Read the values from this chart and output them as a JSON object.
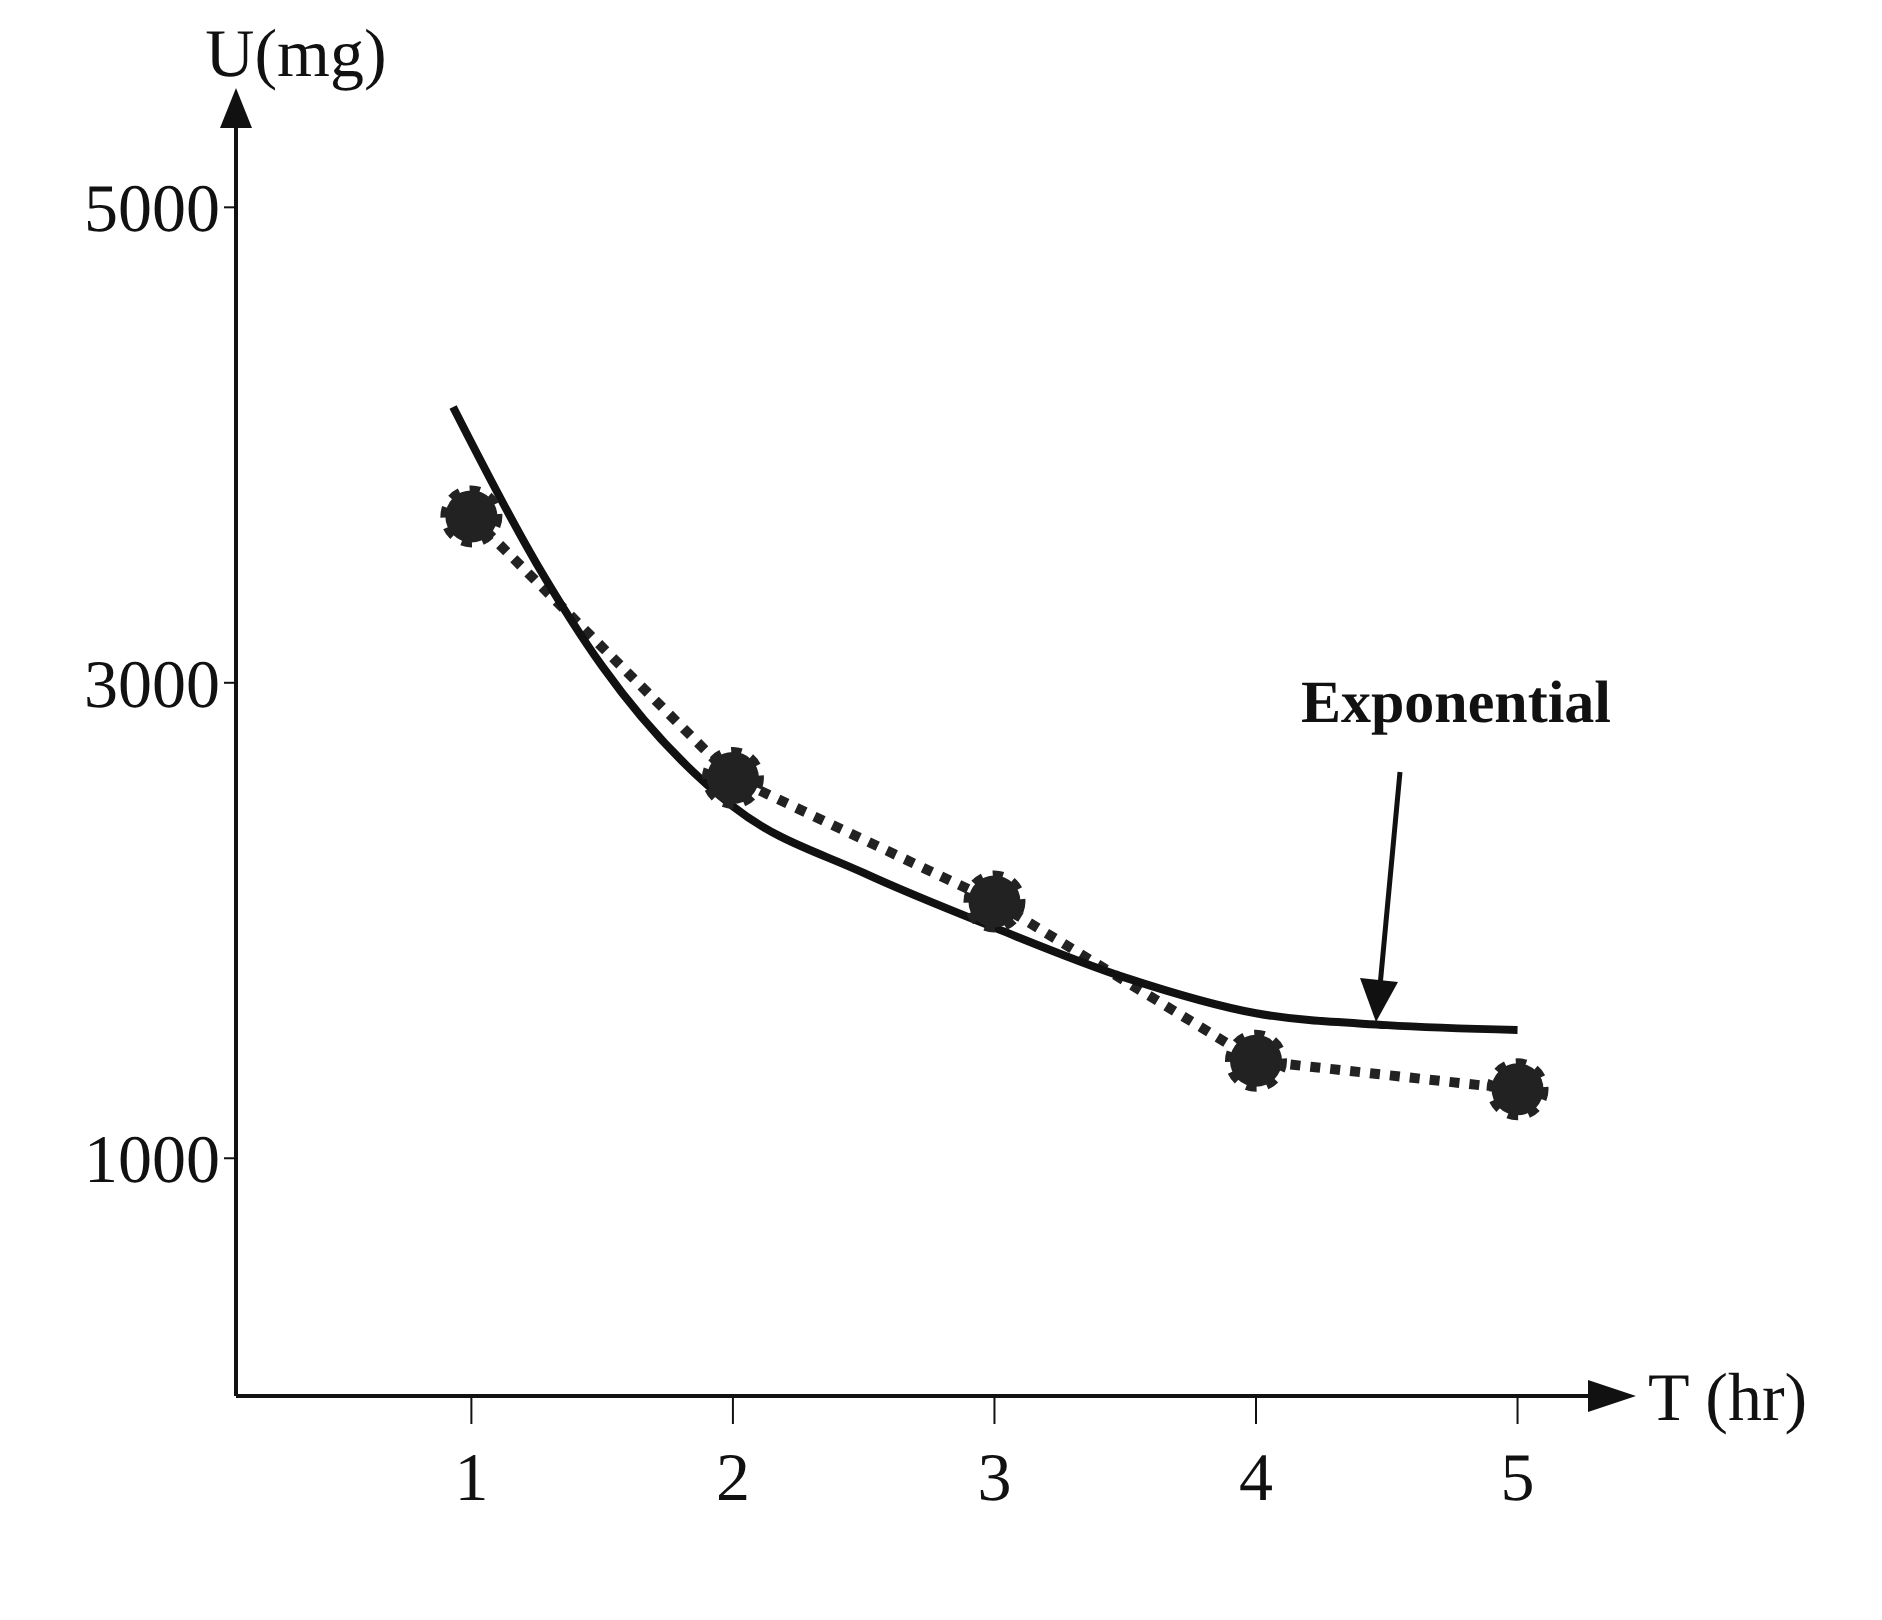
{
  "chart_data": {
    "type": "line",
    "xlabel": "T (hr)",
    "ylabel": "U(mg)",
    "xlim": [
      0.1,
      5.3
    ],
    "xticks": [
      1,
      2,
      3,
      4,
      5
    ],
    "ylim": [
      0,
      5300
    ],
    "yticks": [
      1000,
      3000,
      5000
    ],
    "series": [
      {
        "color": "#222222",
        "x": [
          1,
          2,
          3,
          4,
          5
        ],
        "values": [
          3700,
          2600,
          2080,
          1410,
          1290
        ],
        "marker": "circle",
        "line_style": "dotted"
      },
      {
        "color": "#111111",
        "x": [
          0.93,
          1.25,
          1.5,
          2,
          2.5,
          3,
          3.5,
          4,
          4.5,
          5
        ],
        "values": [
          4160,
          3500,
          3070,
          2480,
          2200,
          1970,
          1760,
          1610,
          1560,
          1540
        ],
        "marker": "none",
        "line_style": "solid"
      }
    ],
    "annotations": [
      "Exponential"
    ]
  }
}
